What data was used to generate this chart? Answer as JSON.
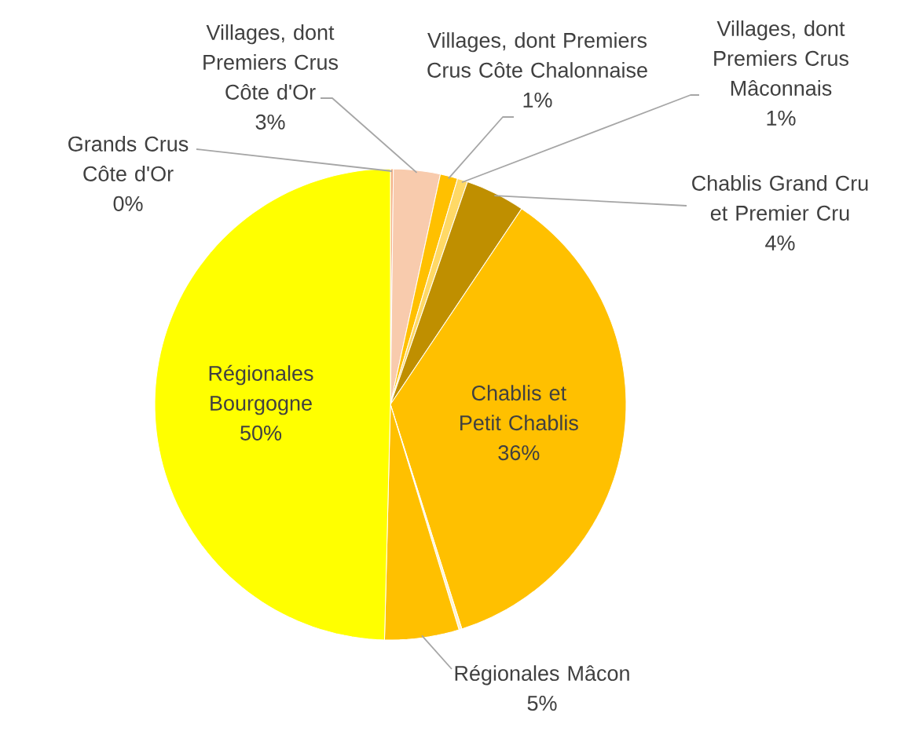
{
  "chart_data": {
    "type": "pie",
    "categories": [
      "Grands Crus Côte d'Or",
      "Villages, dont Premiers Crus Côte d'Or",
      "Villages, dont Premiers Crus Côte Chalonnaise",
      "Villages, dont Premiers Crus Mâconnais",
      "Chablis Grand Cru et Premier Cru",
      "Chablis et Petit Chablis",
      null,
      "Régionales Mâcon",
      "Régionales Bourgogne"
    ],
    "values": [
      0.2,
      3.2,
      1.2,
      0.7,
      4.1,
      35.7,
      0.2,
      5.1,
      49.6
    ],
    "colors": [
      "#F4B183",
      "#F8CBAD",
      "#FFC000",
      "#FFD966",
      "#BF8F00",
      "#FFC000",
      "#FFF2CC",
      "#FFC000",
      "#FFFF00"
    ],
    "value_labels": [
      "0%",
      "3%",
      "1%",
      "1%",
      "4%",
      "36%",
      null,
      "5%",
      "50%"
    ]
  }
}
